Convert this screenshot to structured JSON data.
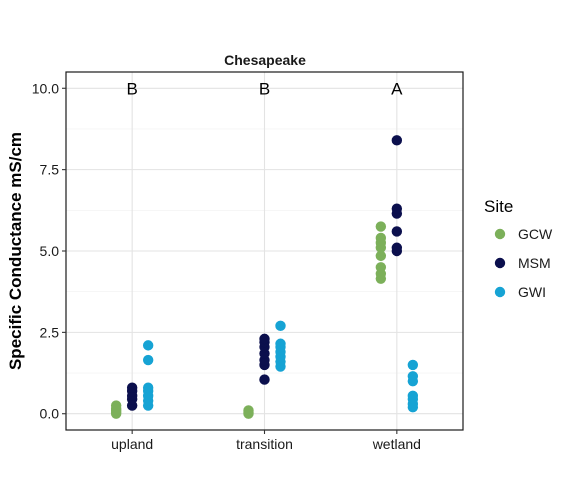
{
  "chart_data": {
    "type": "scatter",
    "title": "Chesapeake",
    "xlabel": "",
    "ylabel": "Specific Conductance mS/cm",
    "categories": [
      "upland",
      "transition",
      "wetland"
    ],
    "ylim": [
      -0.5,
      10.5
    ],
    "yticks": [
      0.0,
      2.5,
      5.0,
      7.5,
      10.0
    ],
    "ytick_labels": [
      "0.0",
      "2.5",
      "5.0",
      "7.5",
      "10.0"
    ],
    "grid": true,
    "legend": {
      "title": "Site",
      "position": "right"
    },
    "group_letters": [
      {
        "category": "upland",
        "label": "B"
      },
      {
        "category": "transition",
        "label": "B"
      },
      {
        "category": "wetland",
        "label": "A"
      }
    ],
    "series": [
      {
        "name": "GCW",
        "color": "#7cb05a",
        "values": {
          "upland": [
            0.0,
            0.05,
            0.1,
            0.15,
            0.25
          ],
          "transition": [
            0.0,
            0.05,
            0.1
          ],
          "wetland": [
            4.15,
            4.3,
            4.5,
            4.85,
            5.1,
            5.25,
            5.4,
            5.75
          ]
        }
      },
      {
        "name": "MSM",
        "color": "#0b0f4d",
        "values": {
          "upland": [
            0.25,
            0.45,
            0.55,
            0.7,
            0.8
          ],
          "transition": [
            1.05,
            1.5,
            1.65,
            1.85,
            2.05,
            2.2,
            2.3
          ],
          "wetland": [
            5.0,
            5.1,
            5.6,
            6.15,
            6.3,
            8.4
          ]
        }
      },
      {
        "name": "GWI",
        "color": "#16a3d4",
        "values": {
          "upland": [
            0.25,
            0.4,
            0.55,
            0.7,
            0.8,
            1.65,
            2.1
          ],
          "transition": [
            1.45,
            1.6,
            1.75,
            1.9,
            2.05,
            2.15,
            2.7
          ],
          "wetland": [
            0.2,
            0.3,
            0.45,
            0.55,
            1.0,
            1.15,
            1.5
          ]
        }
      }
    ]
  }
}
